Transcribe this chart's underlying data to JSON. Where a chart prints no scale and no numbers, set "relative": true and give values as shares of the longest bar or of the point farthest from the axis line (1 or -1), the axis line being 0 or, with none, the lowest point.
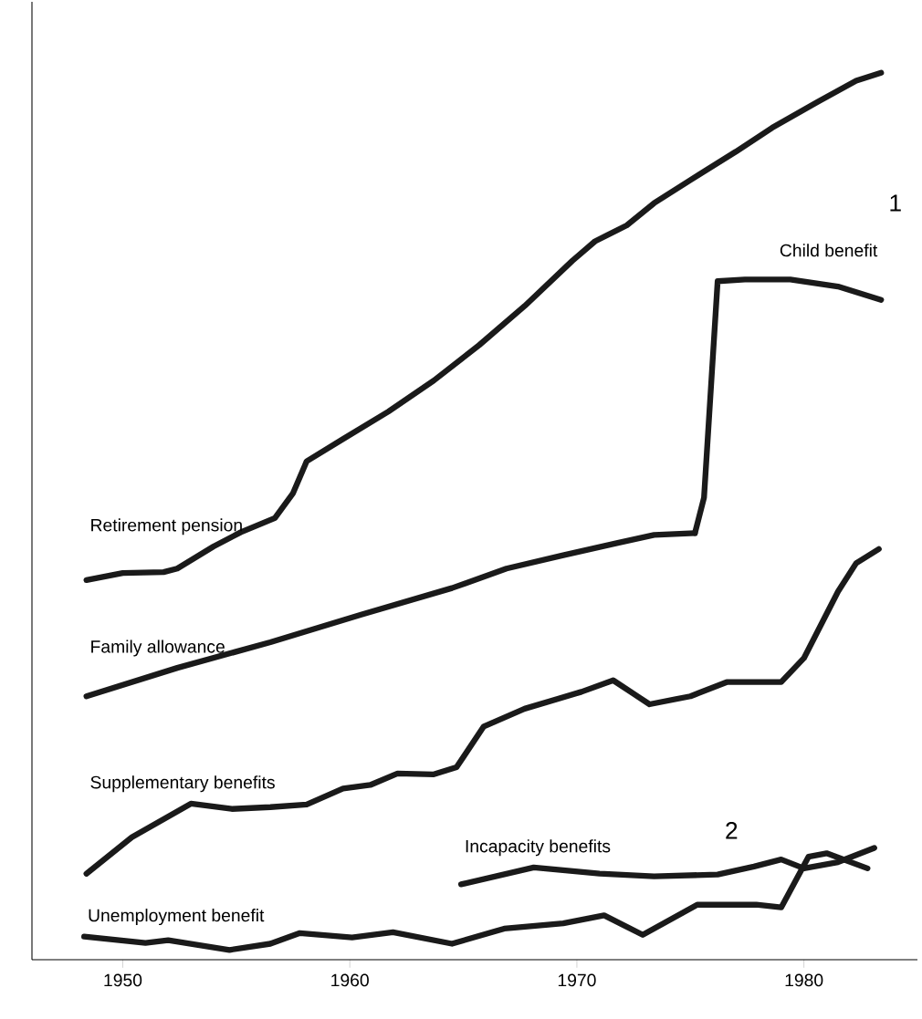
{
  "chart_data": {
    "type": "line",
    "relative": true,
    "xlim": [
      1946,
      1985
    ],
    "xticks": [
      1950,
      1960,
      1970,
      1980
    ],
    "marker": "none",
    "line_style": "solid",
    "legend": false,
    "grid": false,
    "series": [
      {
        "name": "Retirement pension",
        "color": "#1a1a1a",
        "x": [
          1948.4,
          1950,
          1951.8,
          1952.4,
          1954,
          1955.2,
          1956.7,
          1957.5,
          1958.1,
          1959.7,
          1961.7,
          1963.7,
          1965.7,
          1967.7,
          1969.8,
          1970.8,
          1972.2,
          1973.4,
          1975,
          1977,
          1978.6,
          1980.6,
          1982.3,
          1983.4
        ],
        "values": [
          0.428,
          0.436,
          0.437,
          0.441,
          0.466,
          0.482,
          0.498,
          0.526,
          0.562,
          0.587,
          0.618,
          0.653,
          0.693,
          0.737,
          0.788,
          0.81,
          0.828,
          0.853,
          0.879,
          0.911,
          0.938,
          0.967,
          0.991,
          1
        ]
      },
      {
        "name": "Family allowance",
        "color": "#1a1a1a",
        "x": [
          1948.4,
          1952.4,
          1956.5,
          1960.5,
          1964.5,
          1966.9,
          1969.4,
          1971.8,
          1973.4,
          1975.2
        ],
        "values": [
          0.297,
          0.329,
          0.358,
          0.389,
          0.419,
          0.441,
          0.456,
          0.47,
          0.479,
          0.481
        ]
      },
      {
        "name": "Child benefit",
        "color": "#1a1a1a",
        "x": [
          1975.2,
          1975.6,
          1976.2,
          1977.4,
          1979.4,
          1981.5,
          1983.4
        ],
        "values": [
          0.481,
          0.521,
          0.765,
          0.767,
          0.767,
          0.759,
          0.744
        ]
      },
      {
        "name": "Supplementary benefits",
        "color": "#1a1a1a",
        "x": [
          1948.4,
          1950.4,
          1953,
          1954.8,
          1956.5,
          1958.1,
          1959.7,
          1960.9,
          1962.1,
          1963.7,
          1964.7,
          1965.9,
          1967.7,
          1970.2,
          1971.6,
          1973.2,
          1975,
          1976.6,
          1979,
          1980,
          1981.5,
          1982.3,
          1983.3
        ],
        "values": [
          0.097,
          0.138,
          0.176,
          0.17,
          0.172,
          0.175,
          0.193,
          0.197,
          0.21,
          0.209,
          0.217,
          0.263,
          0.283,
          0.302,
          0.315,
          0.288,
          0.297,
          0.313,
          0.313,
          0.34,
          0.415,
          0.447,
          0.463
        ]
      },
      {
        "name": "Incapacity benefits",
        "color": "#1a1a1a",
        "x": [
          1964.9,
          1968.1,
          1971,
          1973.4,
          1976.2,
          1977.8,
          1979,
          1980,
          1981.5,
          1983.1
        ],
        "values": [
          0.085,
          0.104,
          0.097,
          0.094,
          0.096,
          0.105,
          0.113,
          0.103,
          0.11,
          0.126
        ]
      },
      {
        "name": "Unemployment benefit",
        "color": "#1a1a1a",
        "x": [
          1948.3,
          1951,
          1952,
          1954.7,
          1956.5,
          1957.8,
          1960.1,
          1961.9,
          1964.5,
          1966.8,
          1969.4,
          1971.2,
          1972.9,
          1975.3,
          1977.9,
          1979,
          1980.2,
          1981,
          1982.8
        ],
        "values": [
          0.026,
          0.019,
          0.022,
          0.011,
          0.018,
          0.03,
          0.025,
          0.031,
          0.018,
          0.035,
          0.041,
          0.05,
          0.028,
          0.062,
          0.062,
          0.059,
          0.116,
          0.12,
          0.103
        ]
      }
    ],
    "annotations": [
      "1",
      "2"
    ]
  }
}
